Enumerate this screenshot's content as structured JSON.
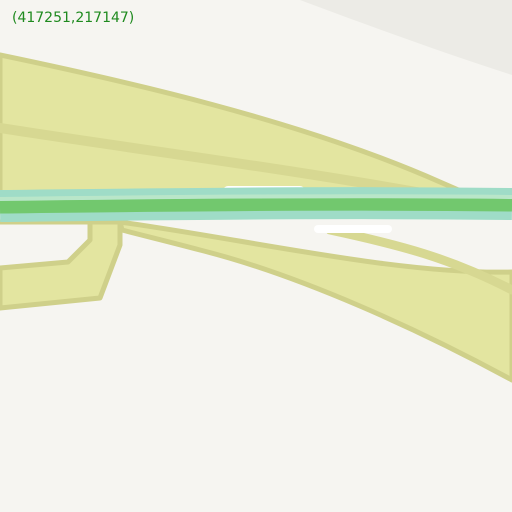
{
  "tile": {
    "coordinate_label": "(417251,217147)"
  },
  "colors": {
    "background": "#f6f5f1",
    "corner_shade": "#ecebe6",
    "park_fill": "#e3e5a0",
    "park_edge": "#cfd08a",
    "road_white": "#ffffff",
    "route_green": "#72c86e",
    "route_teal": "#9fdcc7",
    "label_text": "#1f8a1f"
  }
}
